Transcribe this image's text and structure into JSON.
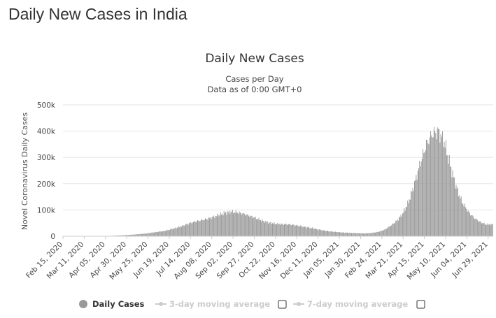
{
  "page": {
    "title": "Daily New Cases in India"
  },
  "chart_data": {
    "type": "bar",
    "title": "Daily New Cases",
    "subtitle_lines": [
      "Cases per Day",
      "Data as of 0:00 GMT+0"
    ],
    "ylabel": "Novel Coronavirus Daily Cases",
    "xlabel": "",
    "ylim": [
      0,
      500000
    ],
    "yticks": [
      0,
      100000,
      200000,
      300000,
      400000,
      500000
    ],
    "ytick_labels": [
      "0",
      "100k",
      "200k",
      "300k",
      "400k",
      "500k"
    ],
    "xtick_labels": [
      "Feb 15, 2020",
      "Mar 11, 2020",
      "Apr 05, 2020",
      "Apr 30, 2020",
      "May 25, 2020",
      "Jun 19, 2020",
      "Jul 14, 2020",
      "Aug 08, 2020",
      "Sep 02, 2020",
      "Sep 27, 2020",
      "Oct 22, 2020",
      "Nov 16, 2020",
      "Dec 11, 2020",
      "Jan 05, 2021",
      "Jan 30, 2021",
      "Feb 24, 2021",
      "Mar 21, 2021",
      "Apr 15, 2021",
      "May 10, 2021",
      "Jun 04, 2021",
      "Jun 29, 2021"
    ],
    "date_range": [
      "Feb 15, 2020",
      "Jul 04, 2021"
    ],
    "bar_color": "#999999",
    "grid": "horizontal",
    "legend_position": "bottom",
    "weekly_values": [
      0,
      0,
      0,
      0,
      0,
      20,
      100,
      500,
      1500,
      2500,
      3500,
      5000,
      6500,
      8500,
      10500,
      14000,
      17000,
      20000,
      26000,
      32000,
      39000,
      48000,
      55000,
      60000,
      65000,
      72000,
      80000,
      88000,
      93000,
      92000,
      87000,
      80000,
      72000,
      63000,
      55000,
      50000,
      47000,
      46000,
      45000,
      42000,
      38000,
      34000,
      30000,
      25000,
      21000,
      18000,
      16000,
      14000,
      13000,
      12000,
      11000,
      11000,
      13000,
      17000,
      25000,
      40000,
      58000,
      85000,
      130000,
      200000,
      280000,
      350000,
      390000,
      400000,
      360000,
      270000,
      190000,
      130000,
      95000,
      70000,
      55000,
      45000
    ],
    "series": [
      {
        "name": "Daily Cases",
        "legend_color": "#999999",
        "active": true
      },
      {
        "name": "3-day moving average",
        "legend_color": "#cccccc",
        "active": false,
        "checked": false
      },
      {
        "name": "7-day moving average",
        "legend_color": "#cccccc",
        "active": false,
        "checked": false
      }
    ]
  }
}
